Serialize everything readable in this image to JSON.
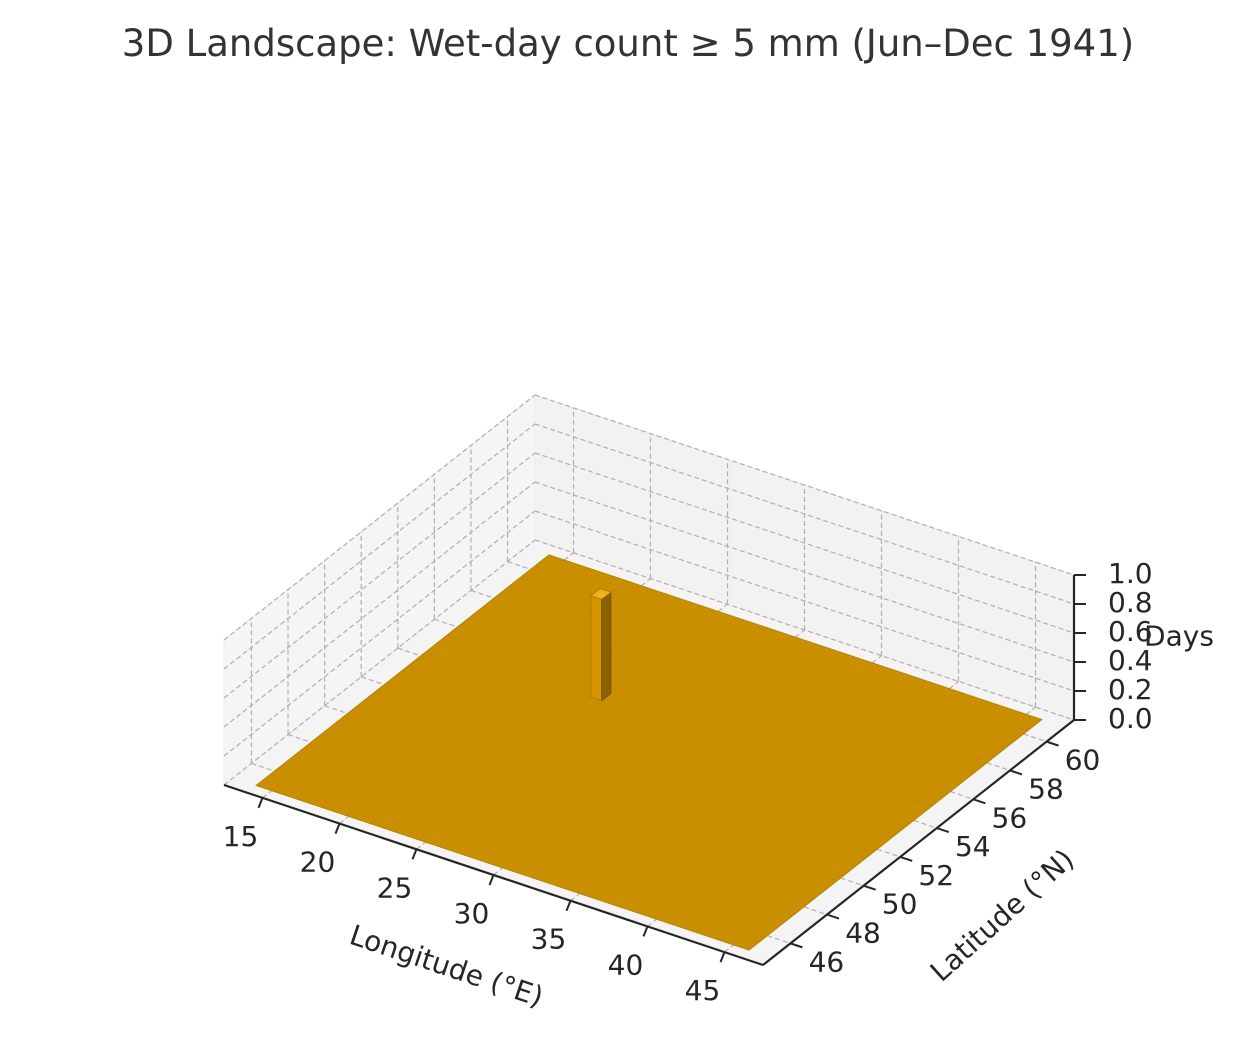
{
  "chart_data": {
    "type": "surface",
    "title": "3D Landscape: Wet-day count ≥ 5 mm (Jun–Dec 1941)",
    "xlabel": "Longitude (°E)",
    "ylabel": "Latitude (°N)",
    "zlabel": "Days",
    "xlim": [
      12.5,
      47.5
    ],
    "ylim": [
      44.5,
      61.5
    ],
    "zlim": [
      0,
      1
    ],
    "xticks": [
      15,
      20,
      25,
      30,
      35,
      40,
      45
    ],
    "yticks": [
      46,
      48,
      50,
      52,
      54,
      56,
      58,
      60
    ],
    "zticks": [
      0.0,
      0.2,
      0.4,
      0.6,
      0.8,
      1.0
    ],
    "xtick_labels": [
      "15",
      "20",
      "25",
      "30",
      "35",
      "40",
      "45"
    ],
    "ytick_labels": [
      "46",
      "48",
      "50",
      "52",
      "54",
      "56",
      "58",
      "60"
    ],
    "ztick_labels": [
      "0.0",
      "0.2",
      "0.4",
      "0.6",
      "0.8",
      "1.0"
    ],
    "surface": {
      "x_range": [
        14,
        46
      ],
      "y_range": [
        45,
        61
      ],
      "base_value": 0,
      "color": "#c98f00",
      "peak": {
        "x": 24.5,
        "y": 55.0,
        "value": 0.7
      }
    },
    "grid": true,
    "pane_color": "#f2f2f2",
    "grid_color": "#b0b0b0"
  }
}
